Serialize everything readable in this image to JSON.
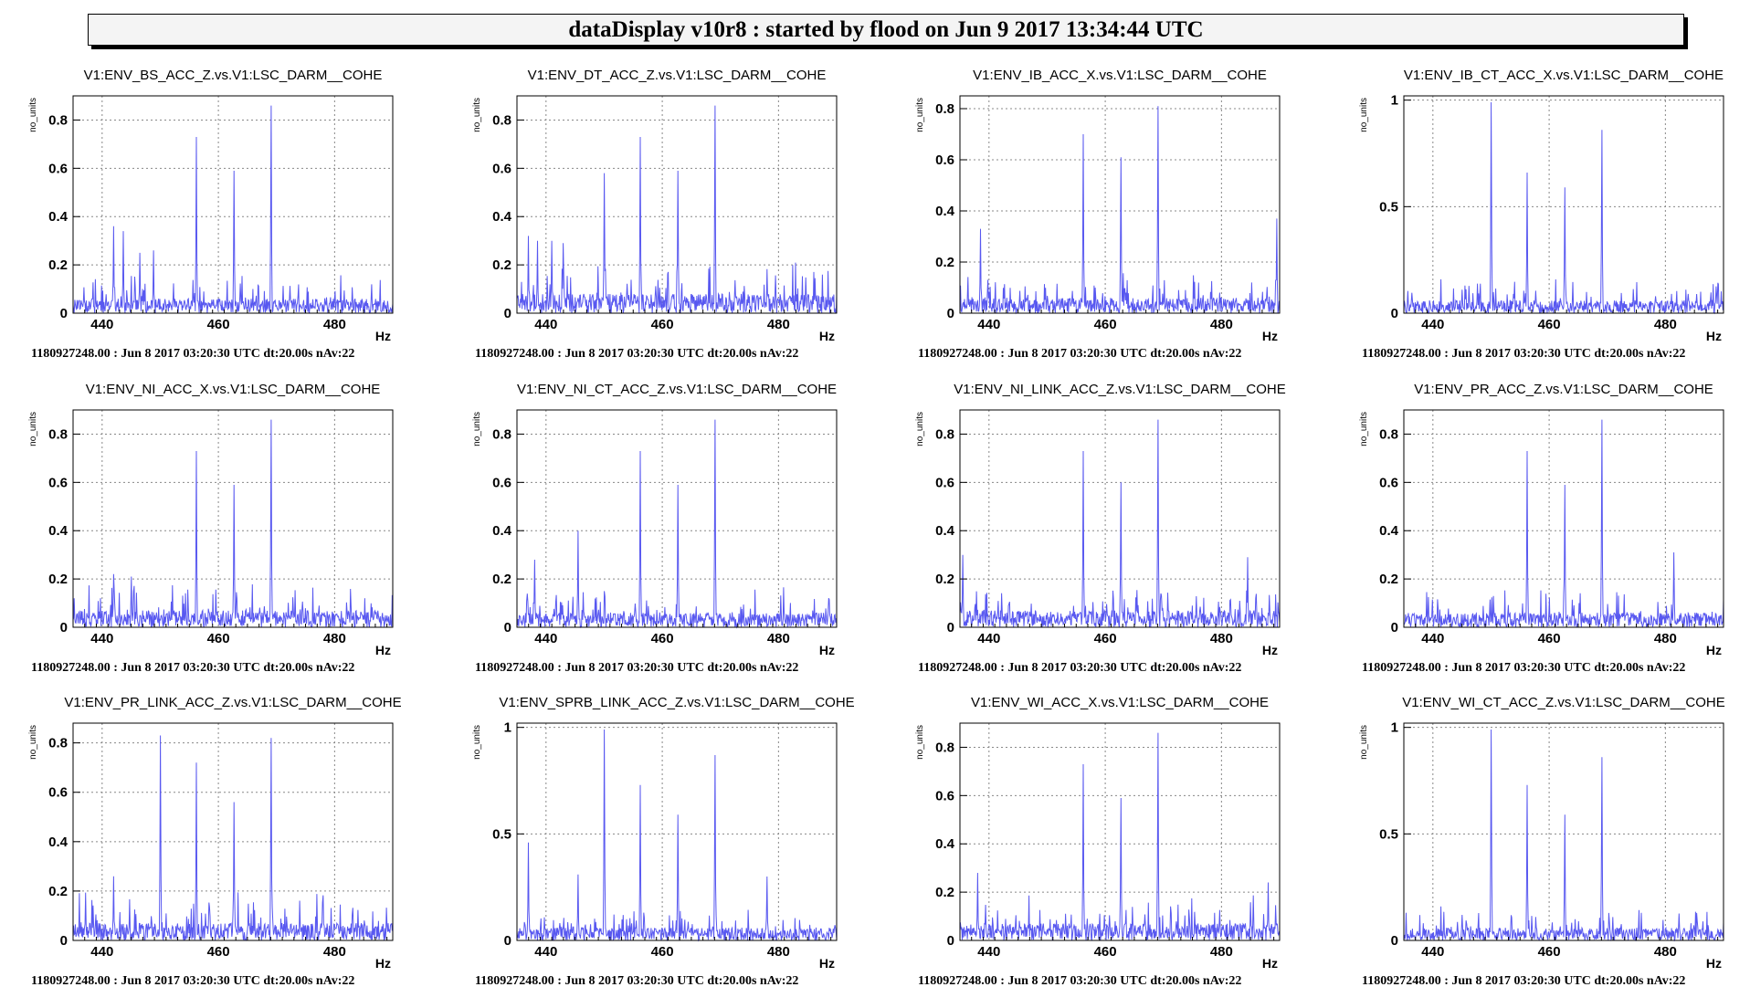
{
  "header": {
    "title": "dataDisplay v10r8 : started by flood on Jun  9 2017 13:34:44 UTC"
  },
  "colors": {
    "trace": "#5858f0",
    "grid": "#888888",
    "frame": "#000000"
  },
  "footer_text": "1180927248.00 : Jun  8 2017 03:20:30 UTC dt:20.00s nAv:22",
  "chart_data": [
    {
      "type": "line",
      "title": "V1:ENV_BS_ACC_Z.vs.V1:LSC_DARM__COHE",
      "xlabel": "Hz",
      "ylabel": "no_units",
      "xlim": [
        435,
        490
      ],
      "ylim": [
        0,
        0.9
      ],
      "xticks": [
        440,
        460,
        480
      ],
      "yticks": [
        0,
        0.2,
        0.4,
        0.6,
        0.8
      ],
      "ytick_labels": [
        "0",
        "0.2",
        "0.4",
        "0.6",
        "0.8"
      ],
      "peaks": [
        [
          442,
          0.36
        ],
        [
          443.6,
          0.34
        ],
        [
          446.5,
          0.25
        ],
        [
          448.8,
          0.26
        ],
        [
          456.2,
          0.73
        ],
        [
          462.7,
          0.59
        ],
        [
          469.1,
          0.86
        ]
      ],
      "noise": 0.06,
      "seed": 1,
      "grid": true
    },
    {
      "type": "line",
      "title": "V1:ENV_DT_ACC_Z.vs.V1:LSC_DARM__COHE",
      "xlabel": "Hz",
      "ylabel": "no_units",
      "xlim": [
        435,
        490
      ],
      "ylim": [
        0,
        0.9
      ],
      "xticks": [
        440,
        460,
        480
      ],
      "yticks": [
        0,
        0.2,
        0.4,
        0.6,
        0.8
      ],
      "ytick_labels": [
        "0",
        "0.2",
        "0.4",
        "0.6",
        "0.8"
      ],
      "peaks": [
        [
          437,
          0.32
        ],
        [
          438.5,
          0.3
        ],
        [
          441,
          0.3
        ],
        [
          443,
          0.29
        ],
        [
          450,
          0.58
        ],
        [
          456.2,
          0.73
        ],
        [
          462.7,
          0.59
        ],
        [
          469.1,
          0.86
        ]
      ],
      "noise": 0.08,
      "seed": 2,
      "grid": true
    },
    {
      "type": "line",
      "title": "V1:ENV_IB_ACC_X.vs.V1:LSC_DARM__COHE",
      "xlabel": "Hz",
      "ylabel": "no_units",
      "xlim": [
        435,
        490
      ],
      "ylim": [
        0,
        0.85
      ],
      "xticks": [
        440,
        460,
        480
      ],
      "yticks": [
        0,
        0.2,
        0.4,
        0.6,
        0.8
      ],
      "ytick_labels": [
        "0",
        "0.2",
        "0.4",
        "0.6",
        "0.8"
      ],
      "peaks": [
        [
          438.5,
          0.33
        ],
        [
          456.2,
          0.7
        ],
        [
          462.7,
          0.61
        ],
        [
          469.1,
          0.81
        ],
        [
          489.5,
          0.37
        ]
      ],
      "noise": 0.06,
      "seed": 3,
      "grid": true
    },
    {
      "type": "line",
      "title": "V1:ENV_IB_CT_ACC_X.vs.V1:LSC_DARM__COHE",
      "xlabel": "Hz",
      "ylabel": "no_units",
      "xlim": [
        435,
        490
      ],
      "ylim": [
        0,
        1.02
      ],
      "xticks": [
        440,
        460,
        480
      ],
      "yticks": [
        0,
        0.5,
        1
      ],
      "ytick_labels": [
        "0",
        "0.5",
        "1"
      ],
      "peaks": [
        [
          450,
          0.99
        ],
        [
          456.2,
          0.66
        ],
        [
          462.7,
          0.59
        ],
        [
          469.1,
          0.86
        ]
      ],
      "noise": 0.06,
      "seed": 4,
      "grid": true
    },
    {
      "type": "line",
      "title": "V1:ENV_NI_ACC_X.vs.V1:LSC_DARM__COHE",
      "xlabel": "Hz",
      "ylabel": "no_units",
      "xlim": [
        435,
        490
      ],
      "ylim": [
        0,
        0.9
      ],
      "xticks": [
        440,
        460,
        480
      ],
      "yticks": [
        0,
        0.2,
        0.4,
        0.6,
        0.8
      ],
      "ytick_labels": [
        "0",
        "0.2",
        "0.4",
        "0.6",
        "0.8"
      ],
      "peaks": [
        [
          442,
          0.22
        ],
        [
          445,
          0.21
        ],
        [
          456.2,
          0.73
        ],
        [
          462.7,
          0.59
        ],
        [
          469.1,
          0.86
        ]
      ],
      "noise": 0.07,
      "seed": 5,
      "grid": true
    },
    {
      "type": "line",
      "title": "V1:ENV_NI_CT_ACC_Z.vs.V1:LSC_DARM__COHE",
      "xlabel": "Hz",
      "ylabel": "no_units",
      "xlim": [
        435,
        490
      ],
      "ylim": [
        0,
        0.9
      ],
      "xticks": [
        440,
        460,
        480
      ],
      "yticks": [
        0,
        0.2,
        0.4,
        0.6,
        0.8
      ],
      "ytick_labels": [
        "0",
        "0.2",
        "0.4",
        "0.6",
        "0.8"
      ],
      "peaks": [
        [
          438,
          0.28
        ],
        [
          445.5,
          0.4
        ],
        [
          456.2,
          0.73
        ],
        [
          462.7,
          0.59
        ],
        [
          469.1,
          0.86
        ]
      ],
      "noise": 0.06,
      "seed": 6,
      "grid": true
    },
    {
      "type": "line",
      "title": "V1:ENV_NI_LINK_ACC_Z.vs.V1:LSC_DARM__COHE",
      "xlabel": "Hz",
      "ylabel": "no_units",
      "xlim": [
        435,
        490
      ],
      "ylim": [
        0,
        0.9
      ],
      "xticks": [
        440,
        460,
        480
      ],
      "yticks": [
        0,
        0.2,
        0.4,
        0.6,
        0.8
      ],
      "ytick_labels": [
        "0",
        "0.2",
        "0.4",
        "0.6",
        "0.8"
      ],
      "peaks": [
        [
          435.5,
          0.3
        ],
        [
          456.2,
          0.73
        ],
        [
          462.7,
          0.6
        ],
        [
          469.1,
          0.86
        ],
        [
          484.5,
          0.29
        ]
      ],
      "noise": 0.07,
      "seed": 7,
      "grid": true
    },
    {
      "type": "line",
      "title": "V1:ENV_PR_ACC_Z.vs.V1:LSC_DARM__COHE",
      "xlabel": "Hz",
      "ylabel": "no_units",
      "xlim": [
        435,
        490
      ],
      "ylim": [
        0,
        0.9
      ],
      "xticks": [
        440,
        460,
        480
      ],
      "yticks": [
        0,
        0.2,
        0.4,
        0.6,
        0.8
      ],
      "ytick_labels": [
        "0",
        "0.2",
        "0.4",
        "0.6",
        "0.8"
      ],
      "peaks": [
        [
          456.2,
          0.73
        ],
        [
          462.7,
          0.59
        ],
        [
          469.1,
          0.86
        ],
        [
          481.5,
          0.31
        ]
      ],
      "noise": 0.06,
      "seed": 8,
      "grid": true
    },
    {
      "type": "line",
      "title": "V1:ENV_PR_LINK_ACC_Z.vs.V1:LSC_DARM__COHE",
      "xlabel": "Hz",
      "ylabel": "no_units",
      "xlim": [
        435,
        490
      ],
      "ylim": [
        0,
        0.88
      ],
      "xticks": [
        440,
        460,
        480
      ],
      "yticks": [
        0,
        0.2,
        0.4,
        0.6,
        0.8
      ],
      "ytick_labels": [
        "0",
        "0.2",
        "0.4",
        "0.6",
        "0.8"
      ],
      "peaks": [
        [
          442,
          0.26
        ],
        [
          450,
          0.83
        ],
        [
          456.2,
          0.72
        ],
        [
          462.7,
          0.56
        ],
        [
          469.1,
          0.82
        ]
      ],
      "noise": 0.07,
      "seed": 9,
      "grid": true
    },
    {
      "type": "line",
      "title": "V1:ENV_SPRB_LINK_ACC_Z.vs.V1:LSC_DARM__COHE",
      "xlabel": "Hz",
      "ylabel": "no_units",
      "xlim": [
        435,
        490
      ],
      "ylim": [
        0,
        1.02
      ],
      "xticks": [
        440,
        460,
        480
      ],
      "yticks": [
        0,
        0.5,
        1
      ],
      "ytick_labels": [
        "0",
        "0.5",
        "1"
      ],
      "peaks": [
        [
          437,
          0.46
        ],
        [
          445.5,
          0.31
        ],
        [
          450,
          0.99
        ],
        [
          456.2,
          0.73
        ],
        [
          462.7,
          0.59
        ],
        [
          469.1,
          0.87
        ],
        [
          478,
          0.3
        ]
      ],
      "noise": 0.06,
      "seed": 10,
      "grid": true
    },
    {
      "type": "line",
      "title": "V1:ENV_WI_ACC_X.vs.V1:LSC_DARM__COHE",
      "xlabel": "Hz",
      "ylabel": "no_units",
      "xlim": [
        435,
        490
      ],
      "ylim": [
        0,
        0.9
      ],
      "xticks": [
        440,
        460,
        480
      ],
      "yticks": [
        0,
        0.2,
        0.4,
        0.6,
        0.8
      ],
      "ytick_labels": [
        "0",
        "0.2",
        "0.4",
        "0.6",
        "0.8"
      ],
      "peaks": [
        [
          438,
          0.28
        ],
        [
          456.2,
          0.73
        ],
        [
          462.7,
          0.59
        ],
        [
          469.1,
          0.86
        ],
        [
          488,
          0.24
        ]
      ],
      "noise": 0.07,
      "seed": 11,
      "grid": true
    },
    {
      "type": "line",
      "title": "V1:ENV_WI_CT_ACC_Z.vs.V1:LSC_DARM__COHE",
      "xlabel": "Hz",
      "ylabel": "no_units",
      "xlim": [
        435,
        490
      ],
      "ylim": [
        0,
        1.02
      ],
      "xticks": [
        440,
        460,
        480
      ],
      "yticks": [
        0,
        0.5,
        1
      ],
      "ytick_labels": [
        "0",
        "0.5",
        "1"
      ],
      "peaks": [
        [
          450,
          0.99
        ],
        [
          456.2,
          0.73
        ],
        [
          462.7,
          0.59
        ],
        [
          469.1,
          0.86
        ]
      ],
      "noise": 0.06,
      "seed": 12,
      "grid": true
    }
  ]
}
